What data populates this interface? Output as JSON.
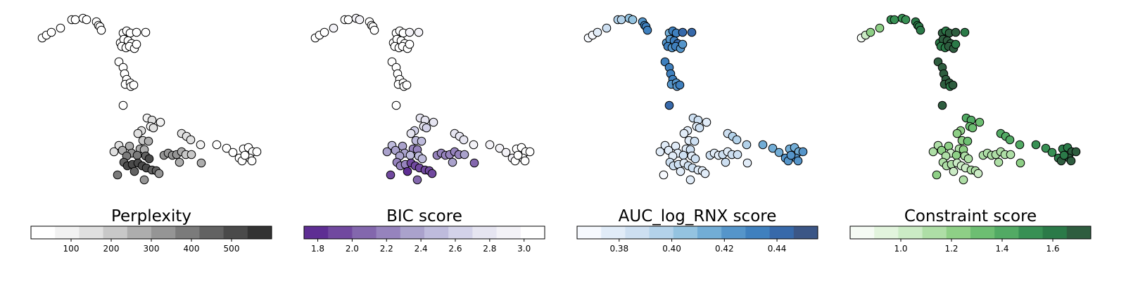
{
  "chart_data": [
    {
      "type": "scatter",
      "title": "Perplexity",
      "colormap": [
        "#ffffff",
        "#f2f2f2",
        "#e0e0e0",
        "#c8c8c8",
        "#adadad",
        "#959595",
        "#7b7b7b",
        "#626262",
        "#4a4a4a",
        "#333333"
      ],
      "cbar_range": [
        0,
        600
      ],
      "ticks": [
        100,
        200,
        300,
        400,
        500
      ],
      "tick_labels": [
        "100",
        "200",
        "300",
        "400",
        "500"
      ]
    },
    {
      "type": "scatter",
      "title": "BIC score",
      "colormap": [
        "#5e2e93",
        "#71499f",
        "#8367ad",
        "#9683bd",
        "#aaa2cc",
        "#bebbdc",
        "#d3d2e9",
        "#e6e5f1",
        "#f3f2f7",
        "#ffffff"
      ],
      "cbar_range": [
        1.72,
        3.12
      ],
      "ticks": [
        1.8,
        2.0,
        2.2,
        2.4,
        2.6,
        2.8,
        3.0
      ],
      "tick_labels": [
        "1.8",
        "2.0",
        "2.2",
        "2.4",
        "2.6",
        "2.8",
        "3.0"
      ]
    },
    {
      "type": "scatter",
      "title": "AUC_log_RNX score",
      "colormap": [
        "#f6f9fe",
        "#e1ecf8",
        "#cddff1",
        "#b3d2ea",
        "#94c3e0",
        "#72add6",
        "#5595ca",
        "#3f80be",
        "#3769aa",
        "#3b5686"
      ],
      "cbar_range": [
        0.364,
        0.4555
      ],
      "ticks": [
        0.38,
        0.4,
        0.42,
        0.44
      ],
      "tick_labels": [
        "0.38",
        "0.40",
        "0.42",
        "0.44"
      ]
    },
    {
      "type": "scatter",
      "title": "Constraint score",
      "colormap": [
        "#f5fbf4",
        "#e2f4dd",
        "#cbebc5",
        "#aedea6",
        "#8ecf86",
        "#6dbe72",
        "#52aa64",
        "#389054",
        "#2b7a48",
        "#2e5d3f"
      ],
      "cbar_range": [
        0.8,
        1.75
      ],
      "ticks": [
        1.0,
        1.2,
        1.4,
        1.6
      ],
      "tick_labels": [
        "1.0",
        "1.2",
        "1.4",
        "1.6"
      ]
    }
  ]
}
